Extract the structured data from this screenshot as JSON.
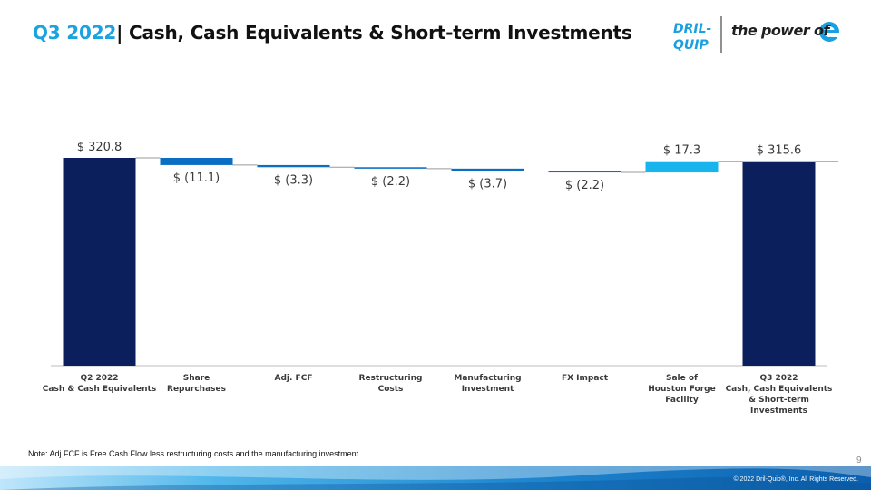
{
  "header": {
    "title_prefix": "Q3 2022",
    "title_separator": "|",
    "title_main": "Cash, Cash Equivalents & Short-term Investments"
  },
  "logo": {
    "brand_line1": "DRIL-",
    "brand_line2": "QUIP",
    "tagline": "the power of",
    "icon": "e-logo-icon"
  },
  "chart_data": {
    "type": "waterfall",
    "title": "",
    "xlabel": "",
    "ylabel": "",
    "ylim": [
      0,
      340
    ],
    "grid": false,
    "legend": "none",
    "categories": [
      [
        "Q2 2022",
        "Cash & Cash Equivalents"
      ],
      [
        "Share",
        "Repurchases"
      ],
      [
        "Adj. FCF"
      ],
      [
        "Restructuring",
        "Costs"
      ],
      [
        "Manufacturing",
        "Investment"
      ],
      [
        "FX Impact"
      ],
      [
        "Sale of",
        "Houston Forge",
        "Facility"
      ],
      [
        "Q3 2022",
        "Cash, Cash Equivalents",
        "& Short-term",
        "Investments"
      ]
    ],
    "values": [
      320.8,
      -11.1,
      -3.3,
      -2.2,
      -3.7,
      -2.2,
      17.3,
      315.6
    ],
    "kinds": [
      "total",
      "delta",
      "delta",
      "delta",
      "delta",
      "delta",
      "delta",
      "total"
    ],
    "value_labels": [
      "$ 320.8",
      "$ (11.1)",
      "$ (3.3)",
      "$ (2.2)",
      "$ (3.7)",
      "$ (2.2)",
      "$ 17.3",
      "$ 315.6"
    ],
    "colors": {
      "total": "#0b1f5c",
      "decrease": "#0a6fc2",
      "increase": "#18b4ee",
      "connector": "#9a9a9a",
      "axis": "#bdbdbd"
    }
  },
  "footnote": "Note: Adj FCF is Free Cash Flow less restructuring costs and the manufacturing investment",
  "page_number": "9",
  "copyright": "© 2022 Dril-Quip®, Inc. All Rights Reserved."
}
